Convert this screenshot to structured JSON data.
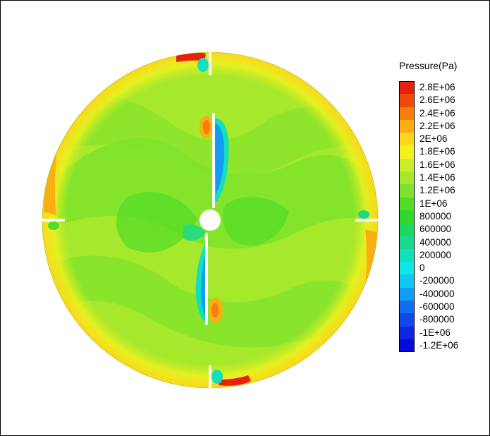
{
  "legend": {
    "title": "Pressure(Pa)",
    "levels": [
      {
        "label": "2.8E+06",
        "value": 2800000,
        "color": "#e8200a"
      },
      {
        "label": "2.6E+06",
        "value": 2600000,
        "color": "#f04a0a"
      },
      {
        "label": "2.4E+06",
        "value": 2400000,
        "color": "#f77d0c"
      },
      {
        "label": "2.2E+06",
        "value": 2200000,
        "color": "#fbae14"
      },
      {
        "label": "2E+06",
        "value": 2000000,
        "color": "#fcd619"
      },
      {
        "label": "1.8E+06",
        "value": 1800000,
        "color": "#f4f21e"
      },
      {
        "label": "1.6E+06",
        "value": 1600000,
        "color": "#cbee28"
      },
      {
        "label": "1.4E+06",
        "value": 1400000,
        "color": "#a5e82c"
      },
      {
        "label": "1.2E+06",
        "value": 1200000,
        "color": "#7ee22c"
      },
      {
        "label": "1E+06",
        "value": 1000000,
        "color": "#52dc28"
      },
      {
        "label": "800000",
        "value": 800000,
        "color": "#2ed82c"
      },
      {
        "label": "600000",
        "value": 600000,
        "color": "#1ed85a"
      },
      {
        "label": "400000",
        "value": 400000,
        "color": "#17da8e"
      },
      {
        "label": "200000",
        "value": 200000,
        "color": "#12e0bd"
      },
      {
        "label": "0",
        "value": 0,
        "color": "#0fe6e6"
      },
      {
        "label": "-200000",
        "value": -200000,
        "color": "#10c8f2"
      },
      {
        "label": "-400000",
        "value": -400000,
        "color": "#129cf4"
      },
      {
        "label": "-600000",
        "value": -600000,
        "color": "#126ef0"
      },
      {
        "label": "-800000",
        "value": -800000,
        "color": "#1046ea"
      },
      {
        "label": "-1E+06",
        "value": -1000000,
        "color": "#0c26e4"
      },
      {
        "label": "-1.2E+06",
        "value": -1200000,
        "color": "#0a0ad8"
      }
    ]
  }
}
